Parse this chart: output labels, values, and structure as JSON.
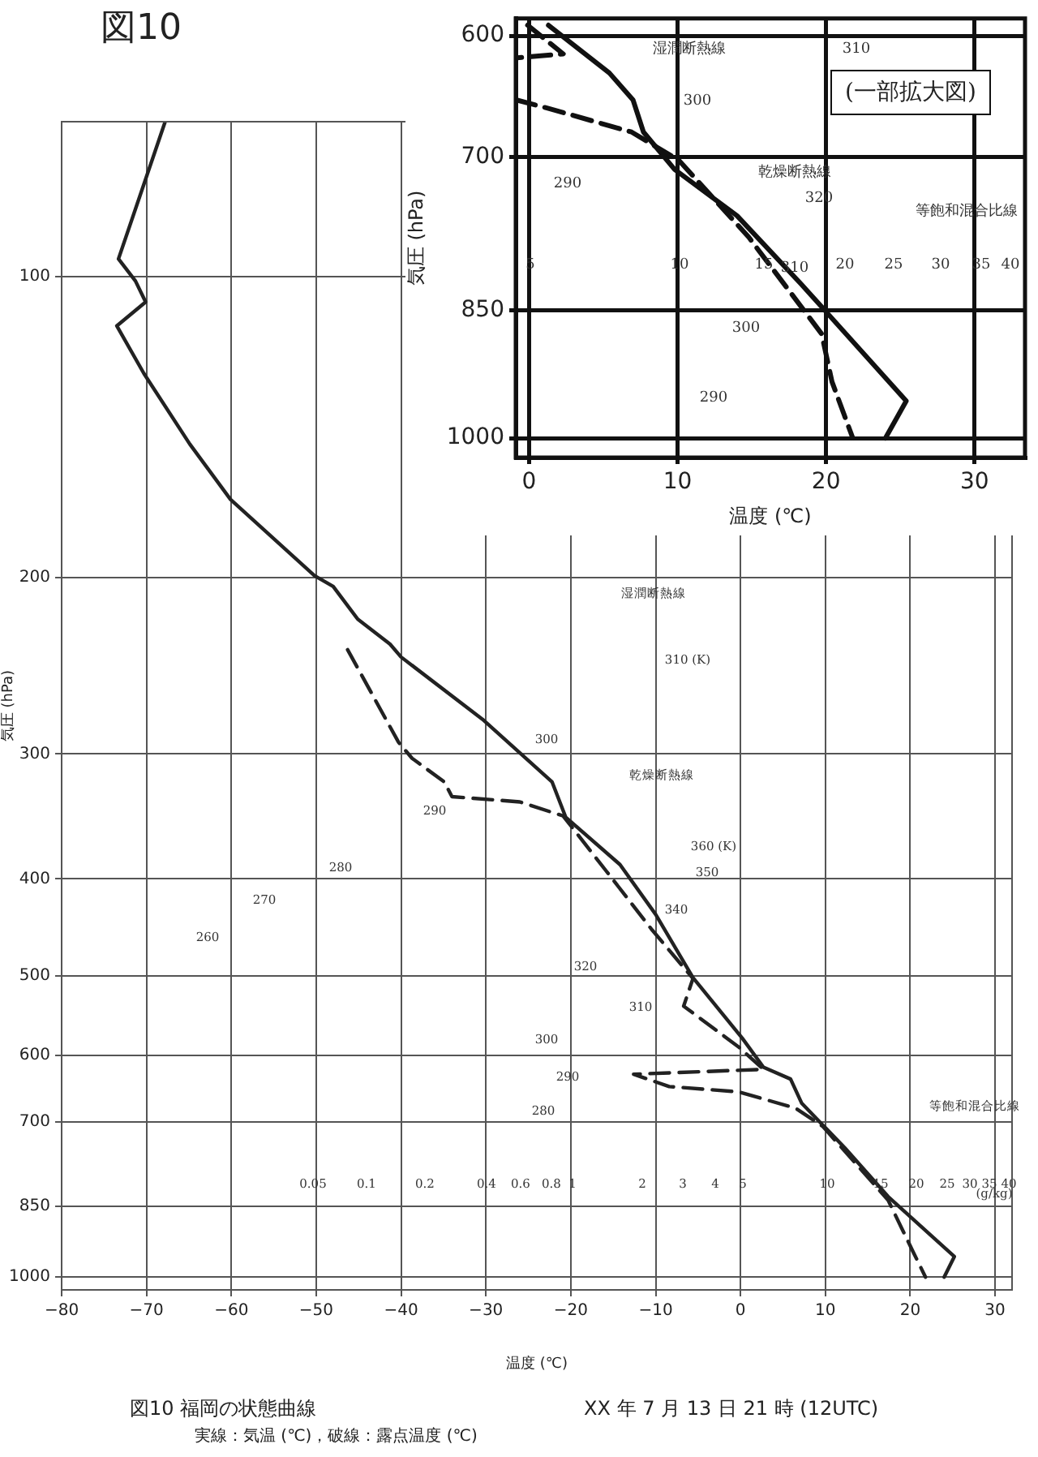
{
  "chart_data": [
    {
      "type": "line",
      "title": "図10 福岡の状態曲線",
      "subtitle": "XX 年 7 月 13 日 21 時 (12UTC)",
      "xlabel": "温度 (℃)",
      "ylabel": "気圧 (hPa)",
      "log": "y",
      "grid": true,
      "marker": "none",
      "xlim": [
        -80,
        32
      ],
      "xticks": [
        -80,
        -70,
        -60,
        -50,
        -40,
        -30,
        -20,
        -10,
        0,
        10,
        20,
        30
      ],
      "ylim": [
        1030,
        70
      ],
      "yticks": [
        100,
        200,
        300,
        400,
        500,
        600,
        700,
        850,
        1000
      ],
      "series": [
        {
          "color": "#222222",
          "line_style": "solid",
          "x": [
            -67.8,
            -73.3,
            -71.3,
            -70.1,
            -73.5,
            -70.3,
            -64.9,
            -60.1,
            -50.2,
            -48.0,
            -45.1,
            -41.3,
            -40.0,
            -30.4,
            -22.2,
            -20.6,
            -14.2,
            -10.0,
            -5.6,
            0.2,
            2.7,
            5.9,
            7.2,
            12.3,
            17.4,
            25.2,
            24.0
          ],
          "values": [
            70,
            96,
            101,
            106,
            112,
            125,
            147,
            167,
            199,
            204,
            220,
            233,
            240,
            277,
            320,
            347,
            387,
            434,
            502,
            577,
            617,
            634,
            670,
            743,
            831,
            954,
            1000
          ]
        },
        {
          "color": "#222222",
          "line_style": "dashed",
          "x": [
            -46.3,
            -40.3,
            -38.7,
            -34.9,
            -34.0,
            -26.0,
            -20.9,
            -15.8,
            -10.4,
            -5.6,
            -6.7,
            -0.2,
            2.7,
            -12.6,
            -8.4,
            -0.2,
            6.5,
            9.7,
            17.4,
            20.3,
            21.8
          ],
          "values": [
            236,
            292,
            303,
            320,
            331,
            335,
            346,
            393,
            450,
            503,
            536,
            589,
            620,
            627,
            645,
            653,
            678,
            707,
            838,
            942,
            1000
          ]
        }
      ],
      "annotations": [
        "図10",
        "実線：気温 (℃)，破線：露点温度 (℃)",
        "湿潤断熱線",
        "乾燥断熱線",
        "等飽和混合比線",
        "(g/kg)",
        "260",
        "270",
        "280",
        "290",
        "300",
        "310 (K)",
        "320",
        "340",
        "350",
        "360 (K)",
        "310",
        "300",
        "290",
        "280",
        "0.05",
        "0.1",
        "0.2",
        "0.4",
        "0.6",
        "0.8",
        "1",
        "2",
        "3",
        "4",
        "5",
        "10",
        "15",
        "20",
        "25",
        "30",
        "35",
        "40"
      ]
    },
    {
      "type": "line",
      "xlabel": "温度 (℃)",
      "ylabel": "気圧 (hPa)",
      "log": "y",
      "grid": true,
      "marker": "none",
      "xlim": [
        -0.9,
        33.4
      ],
      "xticks": [
        0,
        10,
        20,
        30
      ],
      "ylim": [
        1025,
        587
      ],
      "yticks": [
        600,
        700,
        850,
        1000
      ],
      "series": [
        {
          "color": "#111111",
          "line_style": "solid",
          "x": [
            1.3,
            5.4,
            7.0,
            7.7,
            9.8,
            14.0,
            18.3,
            25.4,
            24.0
          ],
          "values": [
            592,
            629,
            651,
            678,
            711,
            754,
            822,
            954,
            1000
          ]
        },
        {
          "color": "#111111",
          "line_style": "dashed",
          "x": [
            -0.1,
            2.3,
            -0.8,
            null,
            -0.85,
            1.3,
            6.9,
            10.1,
            14.8,
            19.7,
            20.4,
            21.8
          ],
          "values": [
            592,
            614,
            617,
            null,
            651,
            658,
            678,
            703,
            775,
            876,
            931,
            1000
          ]
        }
      ],
      "annotations": [
        "(一部拡大図)",
        "湿潤断熱線",
        "乾燥断熱線",
        "等飽和混合比線",
        "310",
        "300",
        "320",
        "290",
        "310",
        "300",
        "290",
        "5",
        "10",
        "15",
        "20",
        "25",
        "30",
        "35",
        "40"
      ]
    }
  ]
}
